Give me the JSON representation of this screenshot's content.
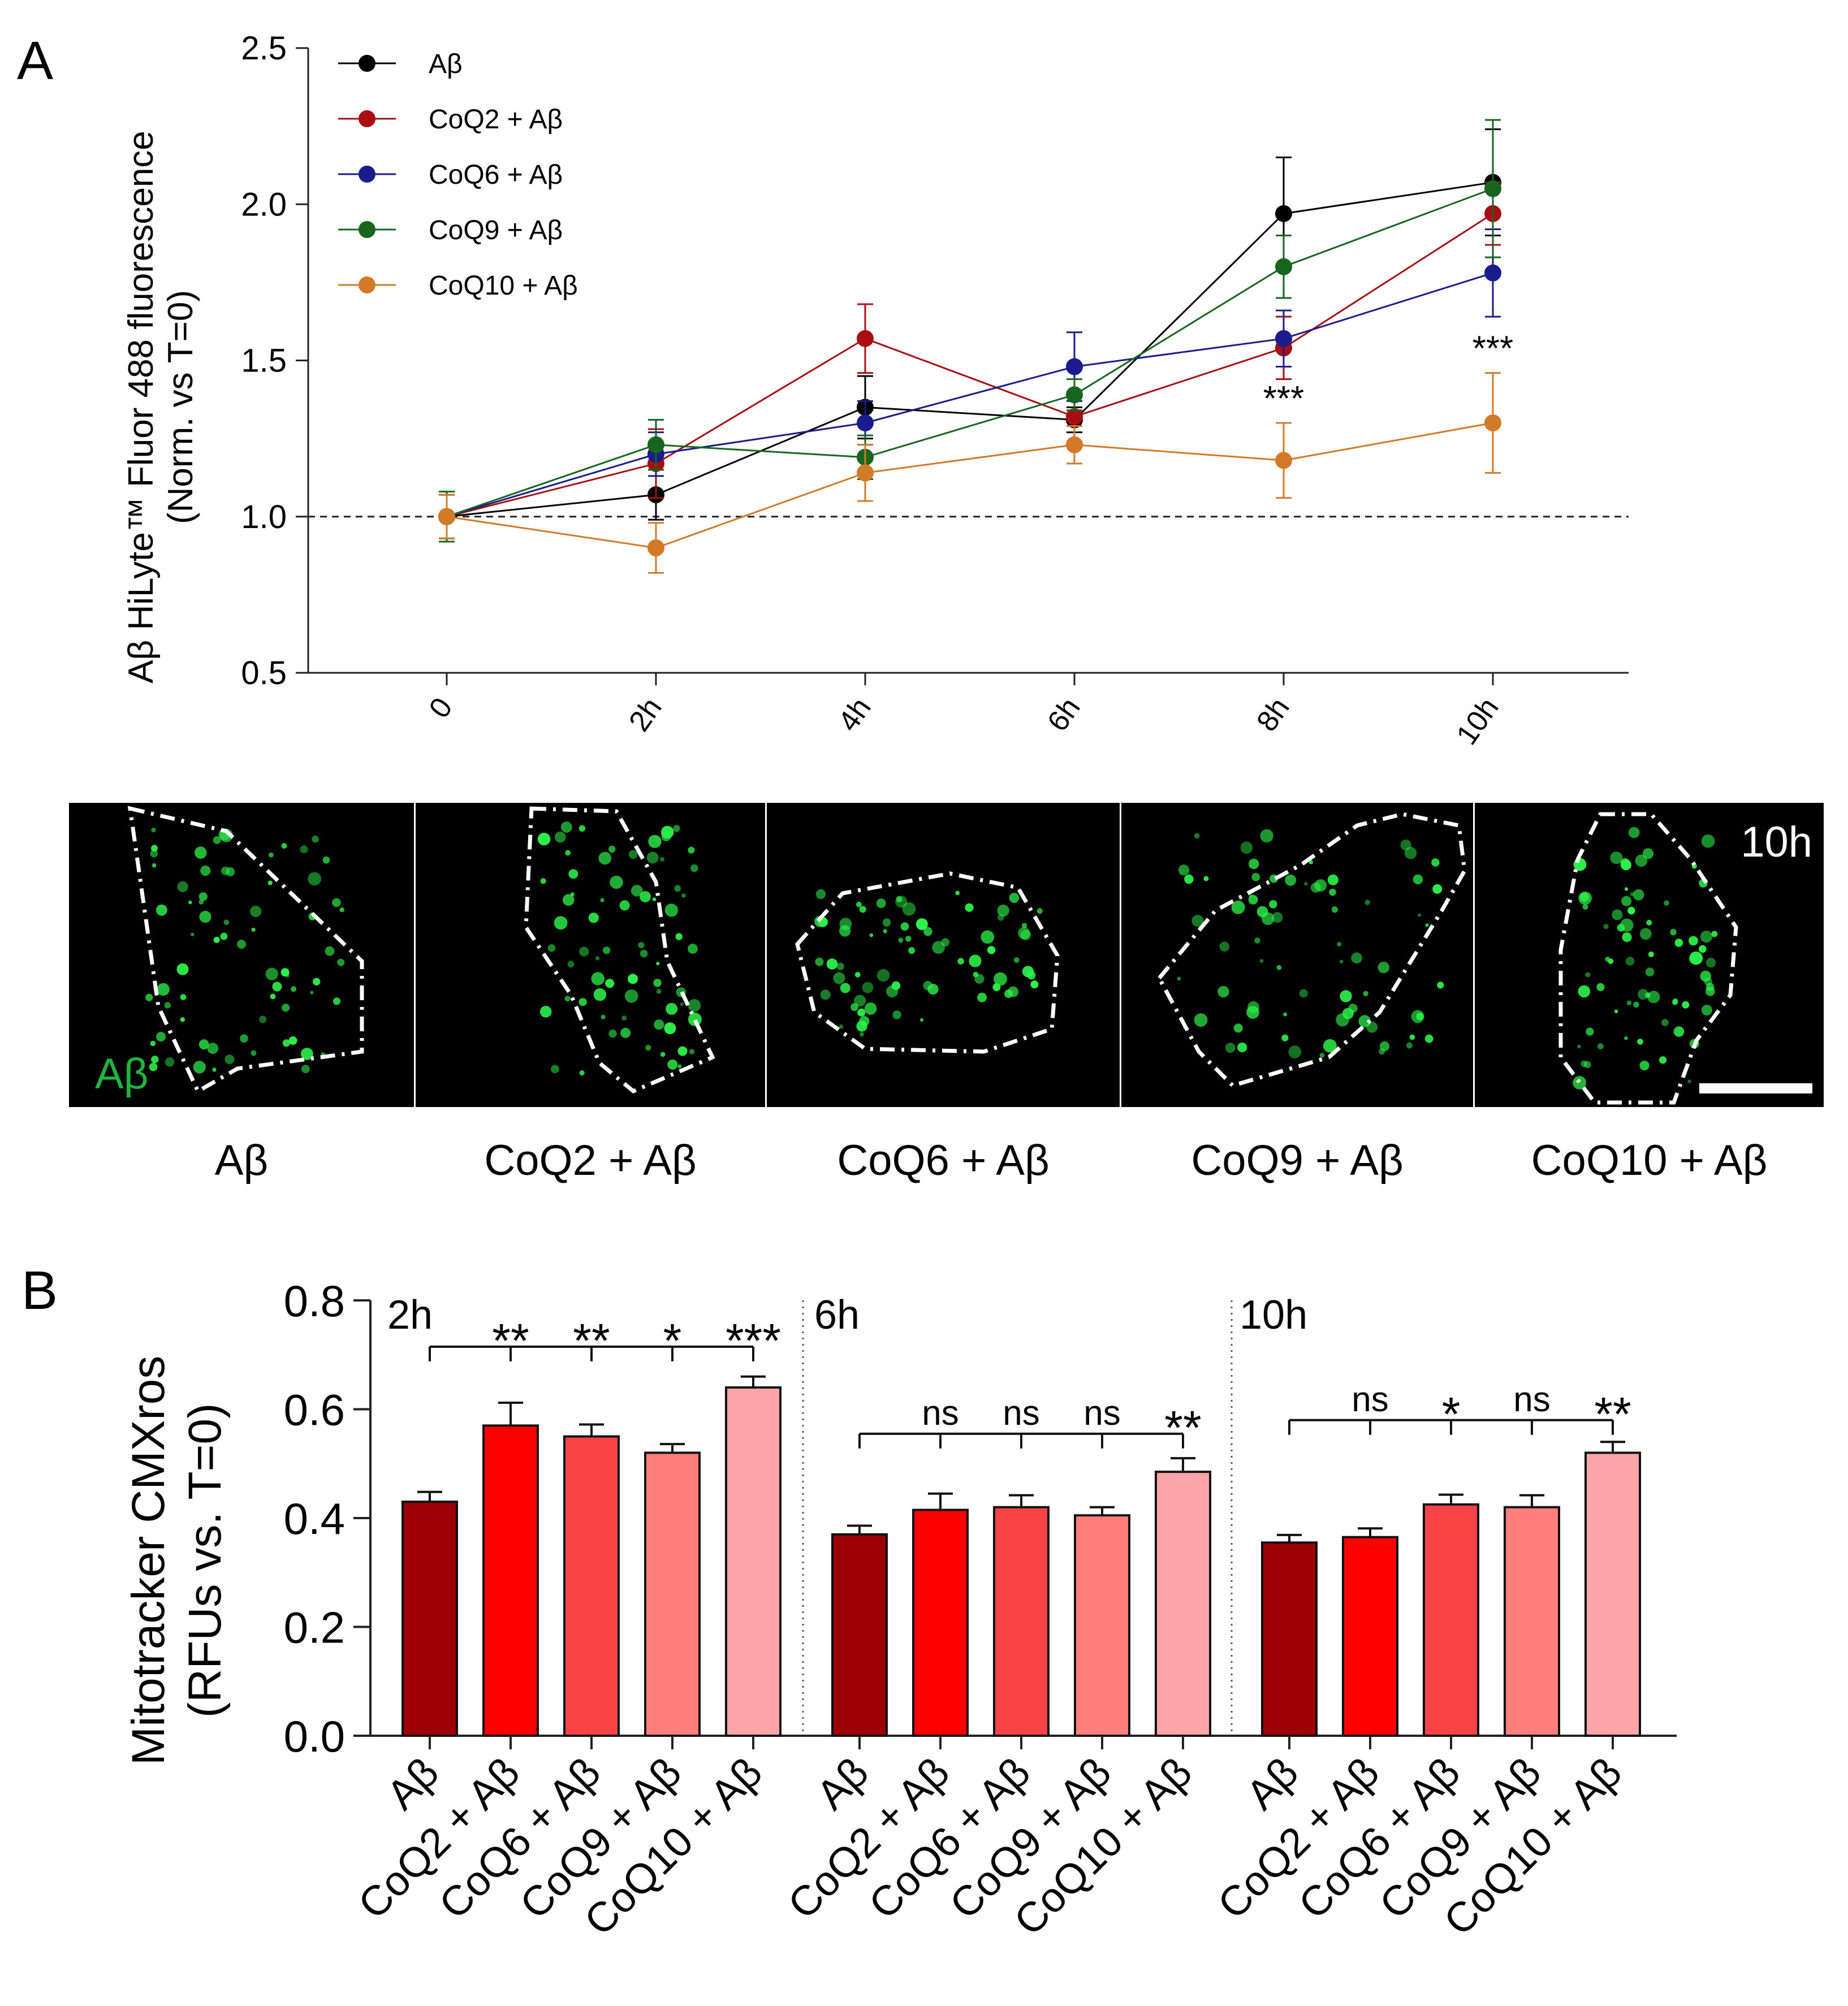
{
  "panel_a": {
    "label": "A",
    "chart_data": {
      "type": "line",
      "ylabel_line1": "Aβ HiLyte™ Fluor 488 fluorescence",
      "ylabel_line2": "(Norm. vs T=0)",
      "ylim": [
        0.5,
        2.5
      ],
      "yticks": [
        0.5,
        1.0,
        1.5,
        2.0,
        2.5
      ],
      "ytick_labels": [
        "0.5",
        "1.0",
        "1.5",
        "2.0",
        "2.5"
      ],
      "categories": [
        "0",
        "2h",
        "4h",
        "6h",
        "8h",
        "10h"
      ],
      "baseline": 1.0,
      "series": [
        {
          "name": "Aβ",
          "color": "#000000",
          "values": [
            1.0,
            1.07,
            1.35,
            1.31,
            1.97,
            2.07
          ],
          "err": [
            0.07,
            0.08,
            0.1,
            0.04,
            0.18,
            0.17
          ]
        },
        {
          "name": "CoQ2 + Aβ",
          "color": "#a80e12",
          "values": [
            1.0,
            1.17,
            1.57,
            1.32,
            1.54,
            1.97
          ],
          "err": [
            0.08,
            0.11,
            0.11,
            0.08,
            0.1,
            0.1
          ]
        },
        {
          "name": "CoQ6 + Aβ",
          "color": "#1a1b8c",
          "values": [
            1.0,
            1.2,
            1.3,
            1.48,
            1.57,
            1.78
          ],
          "err": [
            0.07,
            0.07,
            0.07,
            0.11,
            0.09,
            0.14
          ]
        },
        {
          "name": "CoQ9 + Aβ",
          "color": "#17651e",
          "values": [
            1.0,
            1.23,
            1.19,
            1.39,
            1.8,
            2.05
          ],
          "err": [
            0.08,
            0.08,
            0.07,
            0.05,
            0.1,
            0.22
          ]
        },
        {
          "name": "CoQ10 + Aβ",
          "color": "#d27a28",
          "values": [
            1.0,
            0.9,
            1.14,
            1.23,
            1.18,
            1.3
          ],
          "err": [
            0.07,
            0.08,
            0.09,
            0.06,
            0.12,
            0.16
          ]
        }
      ],
      "annotations": [
        {
          "category": "8h",
          "value": 1.34,
          "text": "***"
        },
        {
          "category": "10h",
          "value": 1.5,
          "text": "***"
        }
      ]
    },
    "images": {
      "stain_label": "Aβ",
      "time_label": "10h",
      "captions": [
        "Aβ",
        "CoQ2 + Aβ",
        "CoQ6 + Aβ",
        "CoQ9 + Aβ",
        "CoQ10 + Aβ"
      ]
    }
  },
  "panel_b": {
    "label": "B",
    "chart_data": {
      "type": "bar",
      "ylabel_line1": "Mitotracker CMXros",
      "ylabel_line2": "(RFUs vs. T=0)",
      "ylim": [
        0,
        0.8
      ],
      "yticks": [
        0.0,
        0.2,
        0.4,
        0.6,
        0.8
      ],
      "ytick_labels": [
        "0.0",
        "0.2",
        "0.4",
        "0.6",
        "0.8"
      ],
      "bar_colors": [
        "#9c0006",
        "#ff0000",
        "#f74346",
        "#ff7f7f",
        "#fda4a8"
      ],
      "groups": [
        {
          "name": "2h",
          "categories": [
            "Aβ",
            "CoQ2 + Aβ",
            "CoQ6 + Aβ",
            "CoQ9 + Aβ",
            "CoQ10 + Aβ"
          ],
          "values": [
            0.43,
            0.57,
            0.55,
            0.52,
            0.64
          ],
          "err": [
            0.018,
            0.042,
            0.022,
            0.016,
            0.02
          ],
          "significance": [
            "**",
            "**",
            "*",
            "***"
          ]
        },
        {
          "name": "6h",
          "categories": [
            "Aβ",
            "CoQ2 + Aβ",
            "CoQ6 + Aβ",
            "CoQ9 + Aβ",
            "CoQ10 + Aβ"
          ],
          "values": [
            0.37,
            0.415,
            0.42,
            0.405,
            0.485
          ],
          "err": [
            0.016,
            0.03,
            0.022,
            0.015,
            0.025
          ],
          "significance": [
            "ns",
            "ns",
            "ns",
            "**"
          ]
        },
        {
          "name": "10h",
          "categories": [
            "Aβ",
            "CoQ2 + Aβ",
            "CoQ6 + Aβ",
            "CoQ9 + Aβ",
            "CoQ10 + Aβ"
          ],
          "values": [
            0.355,
            0.365,
            0.425,
            0.42,
            0.52
          ],
          "err": [
            0.014,
            0.016,
            0.018,
            0.022,
            0.02
          ],
          "significance": [
            "ns",
            "*",
            "ns",
            "**"
          ]
        }
      ]
    }
  }
}
